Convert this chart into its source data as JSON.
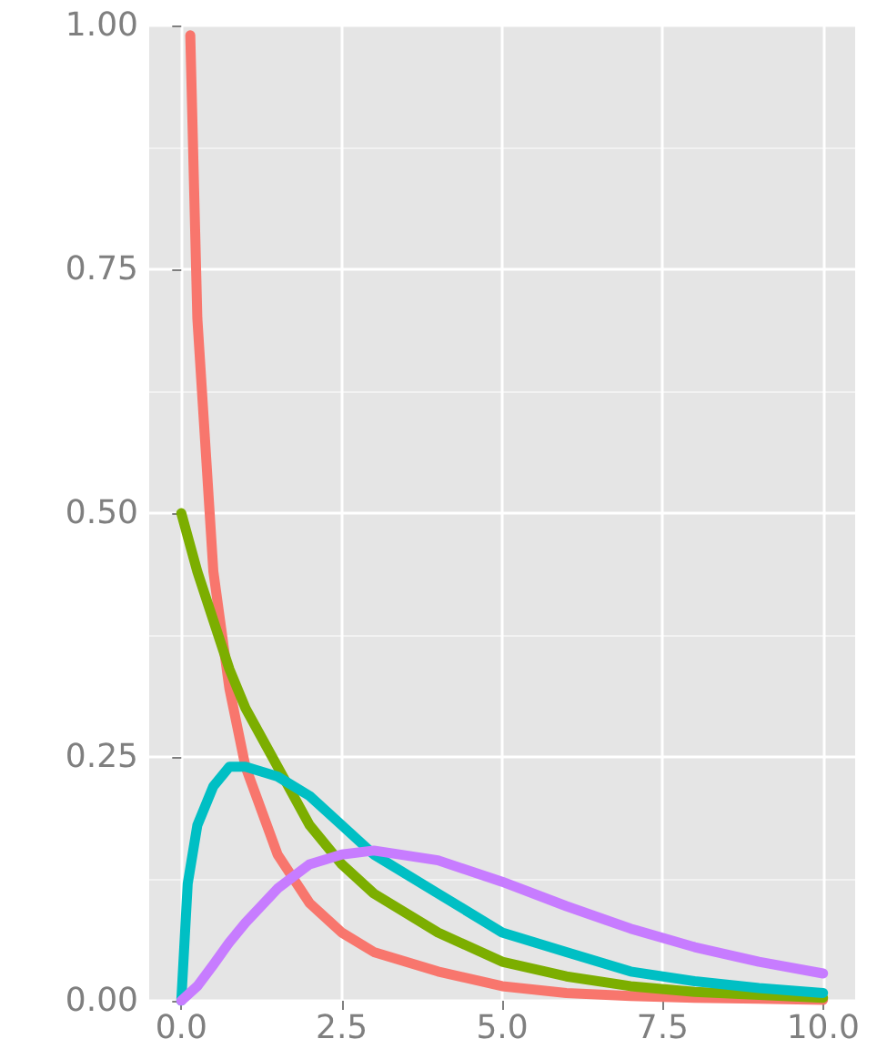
{
  "chart_data": {
    "type": "line",
    "xlim": [
      -0.5,
      10.5
    ],
    "ylim": [
      0,
      1
    ],
    "xticks": [
      {
        "value": 0,
        "label": "0.0"
      },
      {
        "value": 2.5,
        "label": "2.5"
      },
      {
        "value": 5,
        "label": "5.0"
      },
      {
        "value": 7.5,
        "label": "7.5"
      },
      {
        "value": 10,
        "label": "10.0"
      }
    ],
    "yticks": [
      {
        "value": 0,
        "label": "0.00"
      },
      {
        "value": 0.25,
        "label": "0.25"
      },
      {
        "value": 0.5,
        "label": "0.50"
      },
      {
        "value": 0.75,
        "label": "0.75"
      },
      {
        "value": 1,
        "label": "1.00"
      }
    ],
    "grid": true,
    "marker": "none",
    "line_style": "solid",
    "series": [
      {
        "color": "#f8766d",
        "x": [
          0.14,
          0.25,
          0.5,
          0.75,
          1,
          1.5,
          2,
          2.5,
          3,
          4,
          5,
          6,
          7,
          8,
          9,
          10
        ],
        "values": [
          0.99,
          0.7,
          0.44,
          0.32,
          0.24,
          0.15,
          0.1,
          0.07,
          0.05,
          0.03,
          0.015,
          0.008,
          0.005,
          0.003,
          0.002,
          0.001
        ]
      },
      {
        "color": "#7cae00",
        "x": [
          0,
          0.25,
          0.5,
          0.75,
          1,
          1.5,
          2,
          2.5,
          3,
          4,
          5,
          6,
          7,
          8,
          9,
          10
        ],
        "values": [
          0.5,
          0.44,
          0.39,
          0.34,
          0.3,
          0.24,
          0.18,
          0.14,
          0.11,
          0.07,
          0.04,
          0.025,
          0.015,
          0.009,
          0.006,
          0.003
        ]
      },
      {
        "color": "#00bfc4",
        "x": [
          0,
          0.1,
          0.25,
          0.5,
          0.75,
          1,
          1.5,
          2,
          2.5,
          3,
          4,
          5,
          6,
          7,
          8,
          9,
          10
        ],
        "values": [
          0,
          0.12,
          0.18,
          0.22,
          0.24,
          0.24,
          0.23,
          0.21,
          0.18,
          0.15,
          0.11,
          0.07,
          0.05,
          0.03,
          0.02,
          0.013,
          0.008
        ]
      },
      {
        "color": "#c77cff",
        "x": [
          0,
          0.25,
          0.5,
          0.75,
          1,
          1.5,
          2,
          2.5,
          3,
          4,
          5,
          6,
          7,
          8,
          9,
          10
        ],
        "values": [
          0,
          0.015,
          0.037,
          0.06,
          0.08,
          0.115,
          0.14,
          0.15,
          0.154,
          0.144,
          0.122,
          0.097,
          0.074,
          0.055,
          0.04,
          0.028
        ]
      }
    ]
  }
}
